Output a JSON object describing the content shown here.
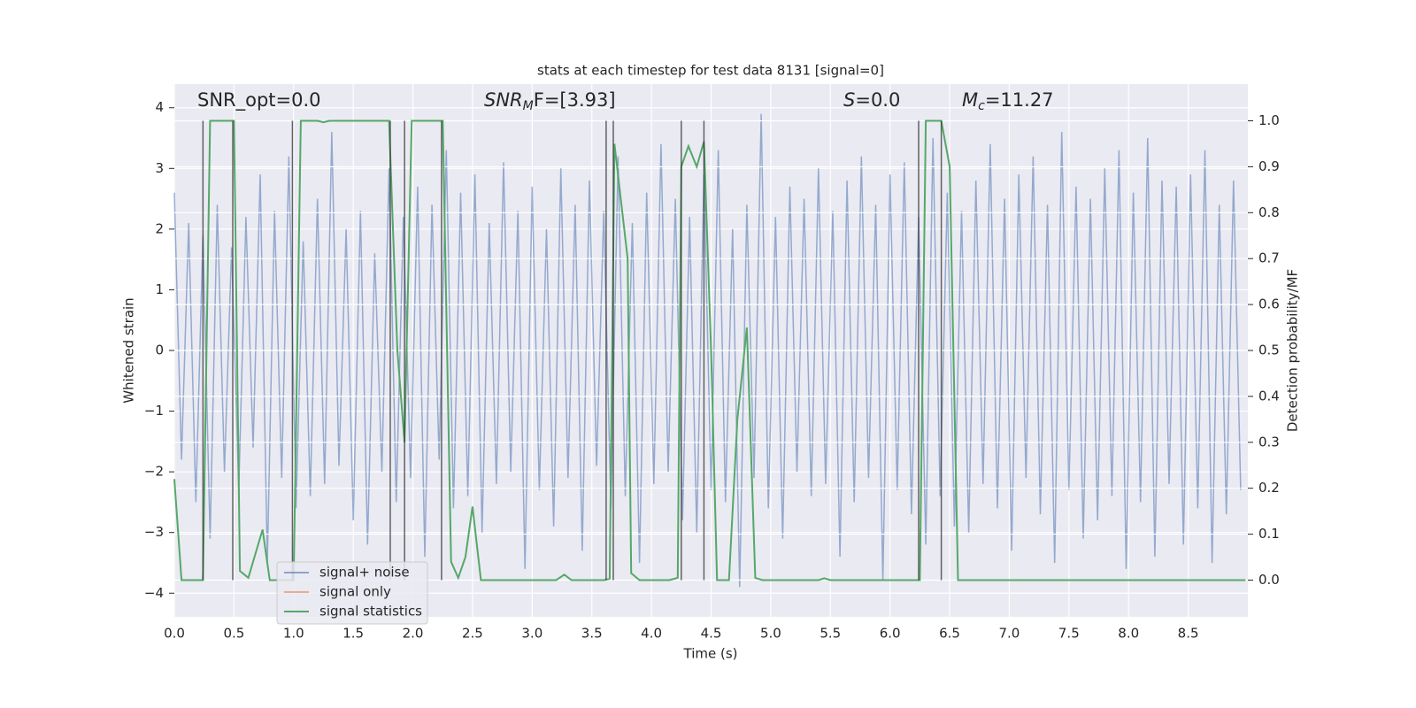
{
  "chart_data": {
    "type": "line",
    "title": "stats at each timestep for test data 8131 [signal=0]",
    "x_label": "Time (s)",
    "y_label": "Whitened strain",
    "y2_label": "Detection probability/MF",
    "annotations": [
      {
        "text": "SNR_opt=0.0"
      },
      {
        "base": "SNR",
        "sub": "M",
        "tail": "F=[3.93]"
      },
      {
        "base": "S",
        "tail": "=0.0"
      },
      {
        "base": "M",
        "sub": "c",
        "tail": "=11.27"
      }
    ],
    "xlim": [
      0,
      9.0
    ],
    "ylim": [
      -4.39,
      4.39
    ],
    "y2lim": [
      -0.08,
      1.08
    ],
    "xticks": [
      {
        "value": 0,
        "label": "0.0"
      },
      {
        "value": 0.5,
        "label": "0.5"
      },
      {
        "value": 1,
        "label": "1.0"
      },
      {
        "value": 1.5,
        "label": "1.5"
      },
      {
        "value": 2,
        "label": "2.0"
      },
      {
        "value": 2.5,
        "label": "2.5"
      },
      {
        "value": 3,
        "label": "3.0"
      },
      {
        "value": 3.5,
        "label": "3.5"
      },
      {
        "value": 4,
        "label": "4.0"
      },
      {
        "value": 4.5,
        "label": "4.5"
      },
      {
        "value": 5,
        "label": "5.0"
      },
      {
        "value": 5.5,
        "label": "5.5"
      },
      {
        "value": 6,
        "label": "6.0"
      },
      {
        "value": 6.5,
        "label": "6.5"
      },
      {
        "value": 7,
        "label": "7.0"
      },
      {
        "value": 7.5,
        "label": "7.5"
      },
      {
        "value": 8,
        "label": "8.0"
      },
      {
        "value": 8.5,
        "label": "8.5"
      }
    ],
    "yticks": [
      {
        "value": -4,
        "label": "−4"
      },
      {
        "value": -3,
        "label": "−3"
      },
      {
        "value": -2,
        "label": "−2"
      },
      {
        "value": -1,
        "label": "−1"
      },
      0,
      1,
      2,
      3,
      4
    ],
    "y2ticks": [
      {
        "value": 0,
        "label": "0.0"
      },
      {
        "value": 0.1,
        "label": "0.1"
      },
      {
        "value": 0.2,
        "label": "0.2"
      },
      {
        "value": 0.3,
        "label": "0.3"
      },
      {
        "value": 0.4,
        "label": "0.4"
      },
      {
        "value": 0.5,
        "label": "0.5"
      },
      {
        "value": 0.6,
        "label": "0.6"
      },
      {
        "value": 0.7,
        "label": "0.7"
      },
      {
        "value": 0.8,
        "label": "0.8"
      },
      {
        "value": 0.9,
        "label": "0.9"
      },
      {
        "value": 1,
        "label": "1.0"
      }
    ],
    "grid": true,
    "legend": "lower left",
    "vlines": [
      0.24,
      0.49,
      0.99,
      1.81,
      1.93,
      2.24,
      3.62,
      3.68,
      4.25,
      4.44,
      6.24,
      6.43
    ],
    "vline_color": "#333333",
    "series": [
      {
        "name": "signal+ noise",
        "color": "#4c72b0",
        "x": [
          0,
          0.06,
          0.12,
          0.18,
          0.24,
          0.3,
          0.36,
          0.42,
          0.48,
          0.54,
          0.6,
          0.66,
          0.72,
          0.78,
          0.84,
          0.9,
          0.96,
          1.02,
          1.08,
          1.14,
          1.2,
          1.26,
          1.32,
          1.38,
          1.44,
          1.5,
          1.56,
          1.62,
          1.68,
          1.74,
          1.8,
          1.86,
          1.92,
          1.98,
          2.04,
          2.1,
          2.16,
          2.22,
          2.28,
          2.34,
          2.4,
          2.46,
          2.52,
          2.58,
          2.64,
          2.7,
          2.76,
          2.82,
          2.88,
          2.94,
          3.0,
          3.06,
          3.12,
          3.18,
          3.24,
          3.3,
          3.36,
          3.42,
          3.48,
          3.54,
          3.6,
          3.66,
          3.72,
          3.78,
          3.84,
          3.9,
          3.96,
          4.02,
          4.08,
          4.14,
          4.2,
          4.26,
          4.32,
          4.38,
          4.44,
          4.5,
          4.56,
          4.62,
          4.68,
          4.74,
          4.8,
          4.86,
          4.92,
          4.98,
          5.04,
          5.1,
          5.16,
          5.22,
          5.28,
          5.34,
          5.4,
          5.46,
          5.52,
          5.58,
          5.64,
          5.7,
          5.76,
          5.82,
          5.88,
          5.94,
          6.0,
          6.06,
          6.12,
          6.18,
          6.24,
          6.3,
          6.36,
          6.42,
          6.48,
          6.54,
          6.6,
          6.66,
          6.72,
          6.78,
          6.84,
          6.9,
          6.96,
          7.02,
          7.08,
          7.14,
          7.2,
          7.26,
          7.32,
          7.38,
          7.44,
          7.5,
          7.56,
          7.62,
          7.68,
          7.74,
          7.8,
          7.86,
          7.92,
          7.98,
          8.04,
          8.1,
          8.16,
          8.22,
          8.28,
          8.34,
          8.4,
          8.46,
          8.52,
          8.58,
          8.64,
          8.7,
          8.76,
          8.82,
          8.88,
          8.94
        ],
        "values": [
          2.6,
          -1.8,
          2.1,
          -2.5,
          1.9,
          -3.1,
          2.4,
          -2.0,
          1.7,
          -2.3,
          2.2,
          -1.6,
          2.9,
          -3.5,
          2.3,
          -2.1,
          3.2,
          -2.6,
          1.8,
          -2.4,
          2.5,
          -2.2,
          3.6,
          -1.9,
          2.0,
          -2.8,
          2.3,
          -3.2,
          1.6,
          -2.0,
          3.0,
          -2.5,
          2.2,
          -2.1,
          2.7,
          -3.4,
          2.4,
          -1.8,
          3.3,
          -2.6,
          2.6,
          -2.4,
          2.9,
          -3.0,
          2.1,
          -2.2,
          3.1,
          -2.0,
          2.3,
          -3.6,
          2.7,
          -2.3,
          2.0,
          -2.9,
          3.0,
          -2.1,
          2.4,
          -3.3,
          2.8,
          -1.9,
          2.3,
          -2.6,
          3.2,
          -2.4,
          2.1,
          -3.5,
          2.6,
          -2.2,
          3.4,
          -2.0,
          2.5,
          -2.8,
          2.2,
          -3.0,
          2.9,
          -2.3,
          3.3,
          -2.5,
          2.0,
          -3.9,
          2.4,
          -2.1,
          3.9,
          -2.6,
          2.2,
          -3.1,
          2.7,
          -2.0,
          2.5,
          -2.4,
          3.0,
          -2.2,
          2.3,
          -3.4,
          2.8,
          -2.5,
          3.2,
          -2.1,
          2.4,
          -3.8,
          2.9,
          -2.3,
          3.1,
          -2.7,
          2.2,
          -3.2,
          3.5,
          -2.4,
          2.6,
          -2.9,
          2.3,
          -3.0,
          2.8,
          -2.2,
          3.4,
          -2.6,
          2.5,
          -3.3,
          2.9,
          -2.1,
          3.2,
          -2.7,
          2.4,
          -3.5,
          3.6,
          -2.3,
          2.7,
          -3.1,
          2.5,
          -2.8,
          3.0,
          -2.4,
          3.3,
          -3.6,
          2.6,
          -2.5,
          3.5,
          -3.4,
          2.8,
          -2.2,
          2.7,
          -3.2,
          2.9,
          -2.6,
          3.3,
          -3.5,
          2.4,
          -2.7,
          2.8,
          -2.3
        ]
      },
      {
        "name": "signal only",
        "color": "#dd8452"
      },
      {
        "name": "signal statistics",
        "color": "#55a868",
        "axis": "y2",
        "x": [
          0,
          0.06,
          0.24,
          0.3,
          0.5,
          0.55,
          0.62,
          0.74,
          0.8,
          0.98,
          1.0,
          1.06,
          1.2,
          1.25,
          1.3,
          1.8,
          1.87,
          1.93,
          1.99,
          2.25,
          2.32,
          2.38,
          2.44,
          2.5,
          2.57,
          3.2,
          3.27,
          3.33,
          3.6,
          3.65,
          3.69,
          3.8,
          3.83,
          3.9,
          4.15,
          4.22,
          4.25,
          4.31,
          4.38,
          4.44,
          4.5,
          4.55,
          4.65,
          4.72,
          4.8,
          4.87,
          4.93,
          5.4,
          5.45,
          5.5,
          6.25,
          6.3,
          6.43,
          6.5,
          6.57,
          8.98
        ],
        "values": [
          0.22,
          0,
          0,
          1,
          1,
          0.02,
          0.005,
          0.11,
          0,
          0,
          0,
          1,
          1,
          0.997,
          1,
          1,
          0.5,
          0.3,
          1,
          1,
          0.04,
          0.005,
          0.05,
          0.16,
          0,
          0,
          0.012,
          0,
          0,
          0.003,
          0.95,
          0.7,
          0.015,
          0,
          0,
          0.005,
          0.9,
          0.945,
          0.9,
          0.955,
          0.5,
          0,
          0,
          0.35,
          0.55,
          0.005,
          0,
          0,
          0.004,
          0,
          0,
          1,
          1,
          0.9,
          0,
          0
        ]
      }
    ]
  }
}
